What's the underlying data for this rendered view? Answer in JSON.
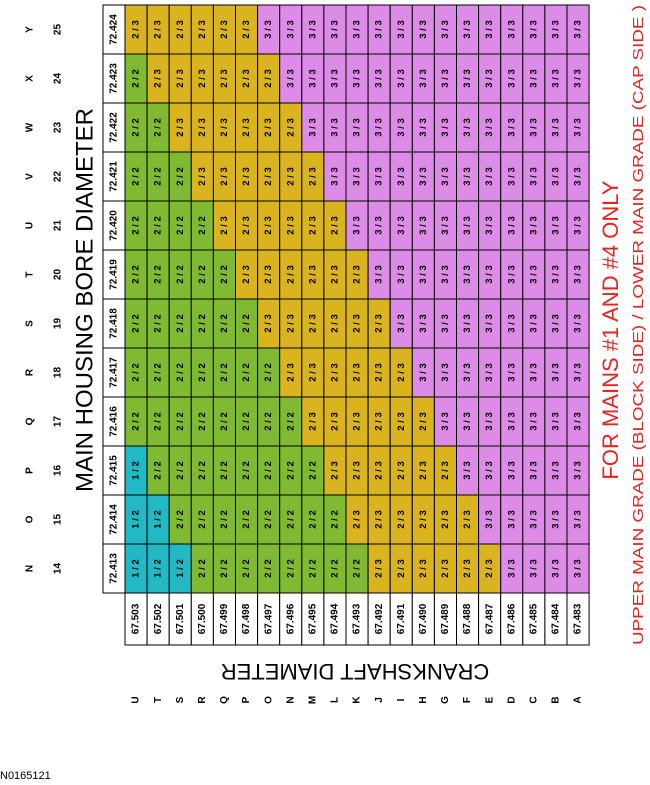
{
  "title": "MAIN HOUSING BORE DIAMETER",
  "crank_title": "CRANKSHAFT DIAMETER",
  "note": "FOR MAINS #1 AND #4 ONLY",
  "subnote": "UPPER MAIN GRADE (BLOCK SIDE) / LOWER MAIN GRADE (CAP SIDE    )",
  "figure_id": "N0165121",
  "grade_colors": {
    "1 / 2": "#22b9c4",
    "2 / 2": "#80b932",
    "2 / 3": "#d9b41f",
    "3 / 3": "#dc8ce6"
  },
  "table": {
    "bore": [
      {
        "letter": "Y",
        "number": "25",
        "diameter": "72.424"
      },
      {
        "letter": "X",
        "number": "24",
        "diameter": "72.423"
      },
      {
        "letter": "W",
        "number": "23",
        "diameter": "72.422"
      },
      {
        "letter": "V",
        "number": "22",
        "diameter": "72.421"
      },
      {
        "letter": "U",
        "number": "21",
        "diameter": "72.420"
      },
      {
        "letter": "T",
        "number": "20",
        "diameter": "72.419"
      },
      {
        "letter": "S",
        "number": "19",
        "diameter": "72.418"
      },
      {
        "letter": "R",
        "number": "18",
        "diameter": "72.417"
      },
      {
        "letter": "Q",
        "number": "17",
        "diameter": "72.416"
      },
      {
        "letter": "P",
        "number": "16",
        "diameter": "72.415"
      },
      {
        "letter": "O",
        "number": "15",
        "diameter": "72.414"
      },
      {
        "letter": "N",
        "number": "14",
        "diameter": "72.413"
      }
    ],
    "crank": [
      {
        "letter": "U",
        "diameter": "67.503"
      },
      {
        "letter": "T",
        "diameter": "67.502"
      },
      {
        "letter": "S",
        "diameter": "67.501"
      },
      {
        "letter": "R",
        "diameter": "67.500"
      },
      {
        "letter": "Q",
        "diameter": "67.499"
      },
      {
        "letter": "P",
        "diameter": "67.498"
      },
      {
        "letter": "O",
        "diameter": "67.497"
      },
      {
        "letter": "N",
        "diameter": "67.496"
      },
      {
        "letter": "M",
        "diameter": "67.495"
      },
      {
        "letter": "L",
        "diameter": "67.494"
      },
      {
        "letter": "K",
        "diameter": "67.493"
      },
      {
        "letter": "J",
        "diameter": "67.492"
      },
      {
        "letter": "I",
        "diameter": "67.491"
      },
      {
        "letter": "H",
        "diameter": "67.490"
      },
      {
        "letter": "G",
        "diameter": "67.489"
      },
      {
        "letter": "F",
        "diameter": "67.488"
      },
      {
        "letter": "E",
        "diameter": "67.487"
      },
      {
        "letter": "D",
        "diameter": "67.486"
      },
      {
        "letter": "C",
        "diameter": "67.485"
      },
      {
        "letter": "B",
        "diameter": "67.484"
      },
      {
        "letter": "A",
        "diameter": "67.483"
      }
    ],
    "rows": [
      [
        "2 / 3",
        "2 / 3",
        "2 / 3",
        "2 / 3",
        "2 / 3",
        "2 / 3",
        "3 / 3",
        "3 / 3",
        "3 / 3",
        "3 / 3",
        "3 / 3",
        "3 / 3",
        "3 / 3",
        "3 / 3",
        "3 / 3",
        "3 / 3",
        "3 / 3",
        "3 / 3",
        "3 / 3",
        "3 / 3",
        "3 / 3"
      ],
      [
        "2 / 2",
        "2 / 3",
        "2 / 3",
        "2 / 3",
        "2 / 3",
        "2 / 3",
        "2 / 3",
        "3 / 3",
        "3 / 3",
        "3 / 3",
        "3 / 3",
        "3 / 3",
        "3 / 3",
        "3 / 3",
        "3 / 3",
        "3 / 3",
        "3 / 3",
        "3 / 3",
        "3 / 3",
        "3 / 3",
        "3 / 3"
      ],
      [
        "2 / 2",
        "2 / 2",
        "2 / 3",
        "2 / 3",
        "2 / 3",
        "2 / 3",
        "2 / 3",
        "2 / 3",
        "3 / 3",
        "3 / 3",
        "3 / 3",
        "3 / 3",
        "3 / 3",
        "3 / 3",
        "3 / 3",
        "3 / 3",
        "3 / 3",
        "3 / 3",
        "3 / 3",
        "3 / 3",
        "3 / 3"
      ],
      [
        "2 / 2",
        "2 / 2",
        "2 / 2",
        "2 / 3",
        "2 / 3",
        "2 / 3",
        "2 / 3",
        "2 / 3",
        "2 / 3",
        "3 / 3",
        "3 / 3",
        "3 / 3",
        "3 / 3",
        "3 / 3",
        "3 / 3",
        "3 / 3",
        "3 / 3",
        "3 / 3",
        "3 / 3",
        "3 / 3",
        "3 / 3"
      ],
      [
        "2 / 2",
        "2 / 2",
        "2 / 2",
        "2 / 2",
        "2 / 3",
        "2 / 3",
        "2 / 3",
        "2 / 3",
        "2 / 3",
        "2 / 3",
        "3 / 3",
        "3 / 3",
        "3 / 3",
        "3 / 3",
        "3 / 3",
        "3 / 3",
        "3 / 3",
        "3 / 3",
        "3 / 3",
        "3 / 3",
        "3 / 3"
      ],
      [
        "2 / 2",
        "2 / 2",
        "2 / 2",
        "2 / 2",
        "2 / 2",
        "2 / 3",
        "2 / 3",
        "2 / 3",
        "2 / 3",
        "2 / 3",
        "2 / 3",
        "3 / 3",
        "3 / 3",
        "3 / 3",
        "3 / 3",
        "3 / 3",
        "3 / 3",
        "3 / 3",
        "3 / 3",
        "3 / 3",
        "3 / 3"
      ],
      [
        "2 / 2",
        "2 / 2",
        "2 / 2",
        "2 / 2",
        "2 / 2",
        "2 / 2",
        "2 / 3",
        "2 / 3",
        "2 / 3",
        "2 / 3",
        "2 / 3",
        "2 / 3",
        "3 / 3",
        "3 / 3",
        "3 / 3",
        "3 / 3",
        "3 / 3",
        "3 / 3",
        "3 / 3",
        "3 / 3",
        "3 / 3"
      ],
      [
        "2 / 2",
        "2 / 2",
        "2 / 2",
        "2 / 2",
        "2 / 2",
        "2 / 2",
        "2 / 2",
        "2 / 3",
        "2 / 3",
        "2 / 3",
        "2 / 3",
        "2 / 3",
        "2 / 3",
        "3 / 3",
        "3 / 3",
        "3 / 3",
        "3 / 3",
        "3 / 3",
        "3 / 3",
        "3 / 3",
        "3 / 3"
      ],
      [
        "2 / 2",
        "2 / 2",
        "2 / 2",
        "2 / 2",
        "2 / 2",
        "2 / 2",
        "2 / 2",
        "2 / 2",
        "2 / 3",
        "2 / 3",
        "2 / 3",
        "2 / 3",
        "2 / 3",
        "2 / 3",
        "3 / 3",
        "3 / 3",
        "3 / 3",
        "3 / 3",
        "3 / 3",
        "3 / 3",
        "3 / 3"
      ],
      [
        "1 / 2",
        "2 / 2",
        "2 / 2",
        "2 / 2",
        "2 / 2",
        "2 / 2",
        "2 / 2",
        "2 / 2",
        "2 / 2",
        "2 / 3",
        "2 / 3",
        "2 / 3",
        "2 / 3",
        "2 / 3",
        "2 / 3",
        "3 / 3",
        "3 / 3",
        "3 / 3",
        "3 / 3",
        "3 / 3",
        "3 / 3"
      ],
      [
        "1 / 2",
        "1 / 2",
        "2 / 2",
        "2 / 2",
        "2 / 2",
        "2 / 2",
        "2 / 2",
        "2 / 2",
        "2 / 2",
        "2 / 2",
        "2 / 3",
        "2 / 3",
        "2 / 3",
        "2 / 3",
        "2 / 3",
        "2 / 3",
        "3 / 3",
        "3 / 3",
        "3 / 3",
        "3 / 3",
        "3 / 3"
      ],
      [
        "1 / 2",
        "1 / 2",
        "1 / 2",
        "2 / 2",
        "2 / 2",
        "2 / 2",
        "2 / 2",
        "2 / 2",
        "2 / 2",
        "2 / 2",
        "2 / 2",
        "2 / 3",
        "2 / 3",
        "2 / 3",
        "2 / 3",
        "2 / 3",
        "2 / 3",
        "3 / 3",
        "3 / 3",
        "3 / 3",
        "3 / 3"
      ]
    ]
  }
}
